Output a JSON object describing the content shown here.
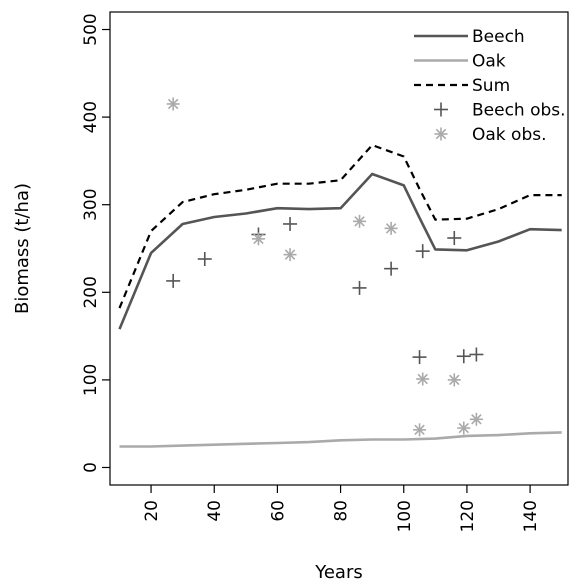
{
  "chart_data": {
    "type": "line",
    "title": "",
    "xlabel": "Years",
    "ylabel": "Biomass (t/ha)",
    "xlim": [
      7,
      152
    ],
    "ylim": [
      -20,
      520
    ],
    "xticks": [
      20,
      40,
      60,
      80,
      100,
      120,
      140
    ],
    "yticks": [
      0,
      100,
      200,
      300,
      400,
      500
    ],
    "grid": false,
    "legend_position": "top-right",
    "series": [
      {
        "name": "Beech",
        "style": "solid",
        "color": "#555555",
        "x": [
          10,
          20,
          30,
          40,
          50,
          60,
          70,
          80,
          90,
          100,
          105,
          110,
          120,
          130,
          140,
          150
        ],
        "y": [
          158,
          245,
          278,
          286,
          290,
          296,
          295,
          296,
          335,
          322,
          285,
          249,
          248,
          258,
          272,
          271
        ]
      },
      {
        "name": "Oak",
        "style": "solid",
        "color": "#aaaaaa",
        "x": [
          10,
          20,
          30,
          40,
          50,
          60,
          70,
          80,
          90,
          100,
          110,
          120,
          130,
          140,
          150
        ],
        "y": [
          24,
          24,
          25,
          26,
          27,
          28,
          29,
          31,
          32,
          32,
          33,
          36,
          37,
          39,
          40
        ]
      },
      {
        "name": "Sum",
        "style": "dashed",
        "color": "#000000",
        "x": [
          10,
          20,
          30,
          40,
          50,
          60,
          70,
          80,
          90,
          100,
          105,
          110,
          120,
          130,
          140,
          150
        ],
        "y": [
          182,
          270,
          303,
          312,
          317,
          324,
          324,
          328,
          368,
          355,
          318,
          283,
          284,
          295,
          311,
          311
        ]
      }
    ],
    "observations": [
      {
        "name": "Beech obs.",
        "marker": "plus",
        "color": "#555555",
        "x": [
          27,
          37,
          54,
          64,
          86,
          96,
          106,
          116,
          105,
          119,
          123
        ],
        "y": [
          213,
          238,
          266,
          278,
          205,
          227,
          247,
          262,
          126,
          127,
          129
        ]
      },
      {
        "name": "Oak obs.",
        "marker": "asterisk",
        "color": "#aaaaaa",
        "x": [
          27,
          54,
          64,
          86,
          96,
          105,
          106,
          116,
          119,
          123
        ],
        "y": [
          415,
          261,
          243,
          281,
          273,
          43,
          101,
          100,
          45,
          55
        ]
      }
    ]
  }
}
